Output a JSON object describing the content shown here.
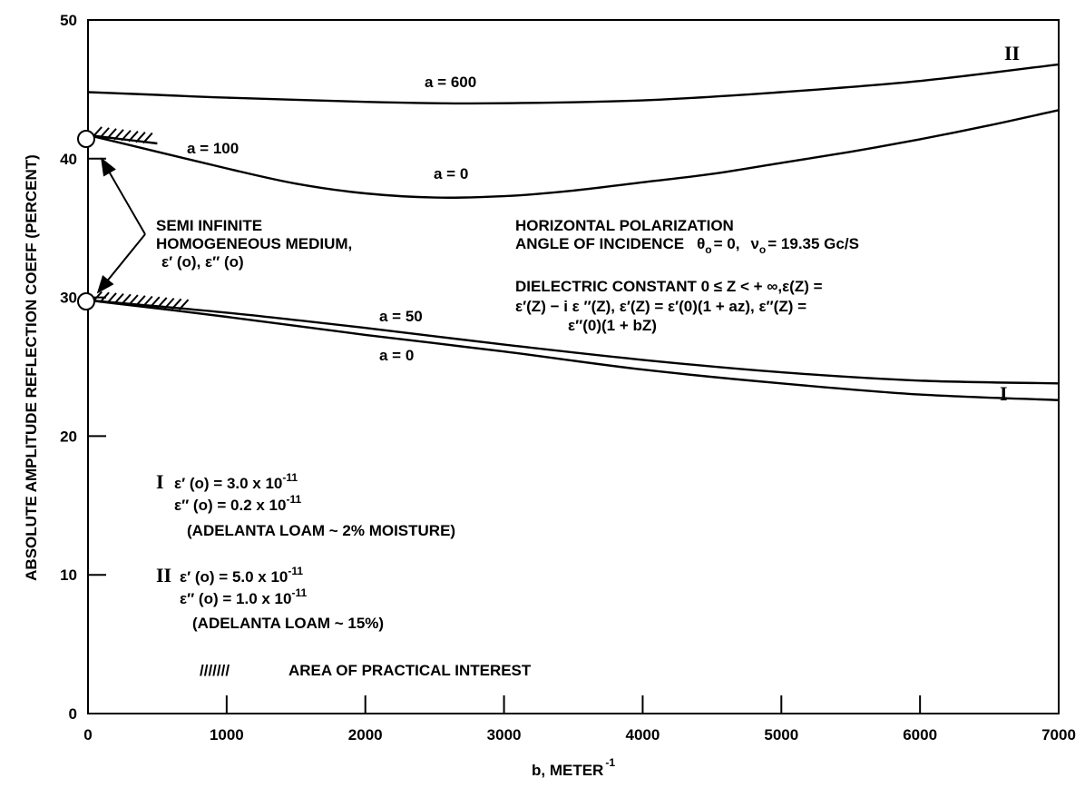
{
  "chart_data": {
    "type": "line",
    "xlabel": "b, METER",
    "xlabel_sup": "-1",
    "ylabel": "ABSOLUTE AMPLITUDE REFLECTION COEFF (PERCENT)",
    "xlim": [
      0,
      7000
    ],
    "ylim": [
      0,
      50
    ],
    "x_ticks": [
      "0",
      "1000",
      "2000",
      "3000",
      "4000",
      "5000",
      "6000",
      "7000"
    ],
    "y_ticks": [
      "0",
      "10",
      "20",
      "30",
      "40",
      "50"
    ],
    "grid": false,
    "series": [
      {
        "name": "a = 600",
        "group": "II",
        "x": [
          0,
          500,
          1000,
          2000,
          2500,
          3000,
          4000,
          5000,
          6000,
          7000
        ],
        "y": [
          44.8,
          44.6,
          44.4,
          44.1,
          44.0,
          44.0,
          44.2,
          44.8,
          45.6,
          46.8
        ]
      },
      {
        "name": "a = 100",
        "group": "II",
        "x": [
          0,
          250,
          500
        ],
        "y": [
          41.7,
          41.4,
          41.1
        ]
      },
      {
        "name": "a = 0",
        "group": "II",
        "x": [
          0,
          500,
          1000,
          1500,
          2000,
          2500,
          3000,
          3500,
          4000,
          4500,
          5000,
          5500,
          6000,
          6500,
          7000
        ],
        "y": [
          41.7,
          40.5,
          39.3,
          38.2,
          37.5,
          37.2,
          37.3,
          37.7,
          38.3,
          38.9,
          39.7,
          40.5,
          41.4,
          42.4,
          43.5
        ]
      },
      {
        "name": "a = 50",
        "group": "I",
        "x": [
          0,
          1000,
          2000,
          3000,
          4000,
          5000,
          6000,
          7000
        ],
        "y": [
          29.8,
          28.9,
          27.8,
          26.6,
          25.5,
          24.6,
          24.0,
          23.8
        ]
      },
      {
        "name": "a = 0",
        "group": "I",
        "x": [
          0,
          1000,
          2000,
          3000,
          4000,
          5000,
          6000,
          7000
        ],
        "y": [
          29.8,
          28.6,
          27.3,
          26.1,
          24.8,
          23.8,
          23.0,
          22.6
        ]
      }
    ],
    "curve_labels": [
      "a = 600",
      "a = 100",
      "a = 0",
      "a = 50",
      "a = 0"
    ],
    "curve_group_labels": [
      "II",
      "I"
    ],
    "medium_note": {
      "line1": "SEMI INFINITE",
      "line2": "HOMOGENEOUS MEDIUM,",
      "line3": "ε′ (o),  ε″ (o)"
    },
    "conditions": {
      "line1": "HORIZONTAL POLARIZATION",
      "line2_prefix": "ANGLE OF INCIDENCE",
      "theta_symbol": "θ",
      "theta_sub": "o",
      "theta_value": "= 0,",
      "nu_symbol": "ν",
      "nu_sub": "o",
      "nu_value": "= 19.35 Gc/S",
      "line3": "DIELECTRIC CONSTANT 0 ≤ Z < + ∞,ε(Z) =",
      "line4": "ε′(Z) − i ε ″(Z), ε′(Z) = ε′(0)(1 + az), ε″(Z) =",
      "line5": "ε″(0)(1 + bZ)"
    },
    "legend_I": {
      "numeral": "I",
      "eps1": "ε′ (o) = 3.0 x 10",
      "eps1_exp": "-11",
      "eps2": "ε″ (o) = 0.2 x 10",
      "eps2_exp": "-11",
      "note": "(ADELANTA LOAM ~ 2% MOISTURE)"
    },
    "legend_II": {
      "numeral": "II",
      "eps1": "ε′ (o) = 5.0 x 10",
      "eps1_exp": "-11",
      "eps2": "ε″ (o) = 1.0 x 10",
      "eps2_exp": "-11",
      "note": "(ADELANTA LOAM ~ 15%)"
    },
    "hatch_legend": {
      "symbol": "///////",
      "label": "AREA OF PRACTICAL INTEREST"
    }
  }
}
